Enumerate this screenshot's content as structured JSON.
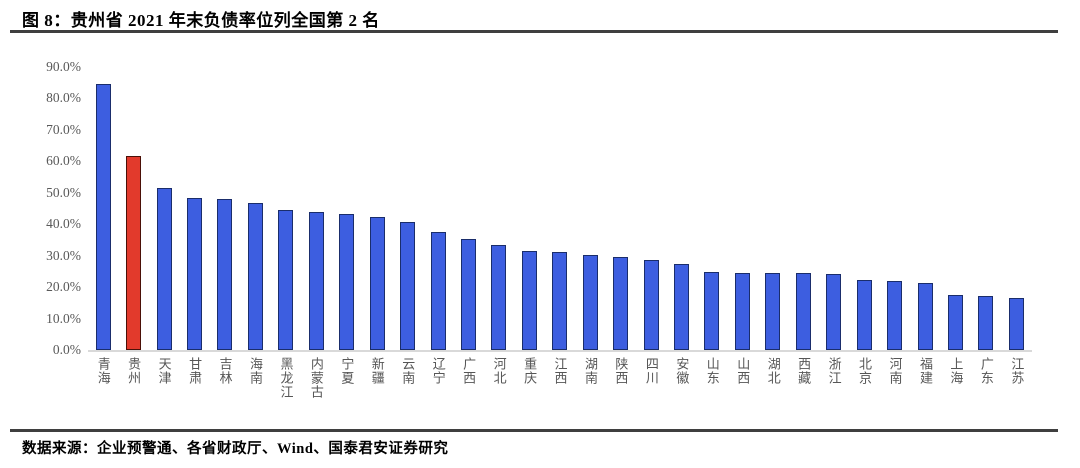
{
  "figure": {
    "title": "图 8：贵州省 2021 年末负债率位列全国第 2 名",
    "source": "数据来源：企业预警通、各省财政厅、Wind、国泰君安证券研究"
  },
  "chart_data": {
    "type": "bar",
    "title": "贵州省 2021 年末负债率位列全国第 2 名",
    "categories": [
      "青海",
      "贵州",
      "天津",
      "甘肃",
      "吉林",
      "海南",
      "黑龙江",
      "内蒙古",
      "宁夏",
      "新疆",
      "云南",
      "辽宁",
      "广西",
      "河北",
      "重庆",
      "江西",
      "湖南",
      "陕西",
      "四川",
      "安徽",
      "山东",
      "山西",
      "湖北",
      "西藏",
      "浙江",
      "北京",
      "河南",
      "福建",
      "上海",
      "广东",
      "江苏"
    ],
    "values": [
      84.5,
      61.7,
      51.4,
      48.5,
      48.0,
      46.9,
      44.5,
      44.0,
      43.3,
      42.4,
      40.8,
      37.6,
      35.3,
      33.4,
      31.6,
      31.1,
      30.2,
      29.6,
      28.6,
      27.4,
      24.7,
      24.6,
      24.6,
      24.5,
      24.1,
      22.3,
      21.8,
      21.3,
      17.5,
      17.2,
      16.5
    ],
    "unit": "%",
    "xlabel": "",
    "ylabel": "",
    "ylim": [
      0,
      90
    ],
    "ytick_labels": [
      "0.0%",
      "10.0%",
      "20.0%",
      "30.0%",
      "40.0%",
      "50.0%",
      "60.0%",
      "70.0%",
      "80.0%",
      "90.0%"
    ],
    "grid": false,
    "legend_position": "none",
    "highlight_index": 1,
    "colors": {
      "bar_fill": "#3d5ee0",
      "bar_border": "#1a2d6b",
      "highlight_fill": "#e23a2c",
      "highlight_border": "#4a1008",
      "baseline": "#d9d9d9",
      "axis_text": "#595959",
      "rule": "#3f3f3f"
    }
  }
}
